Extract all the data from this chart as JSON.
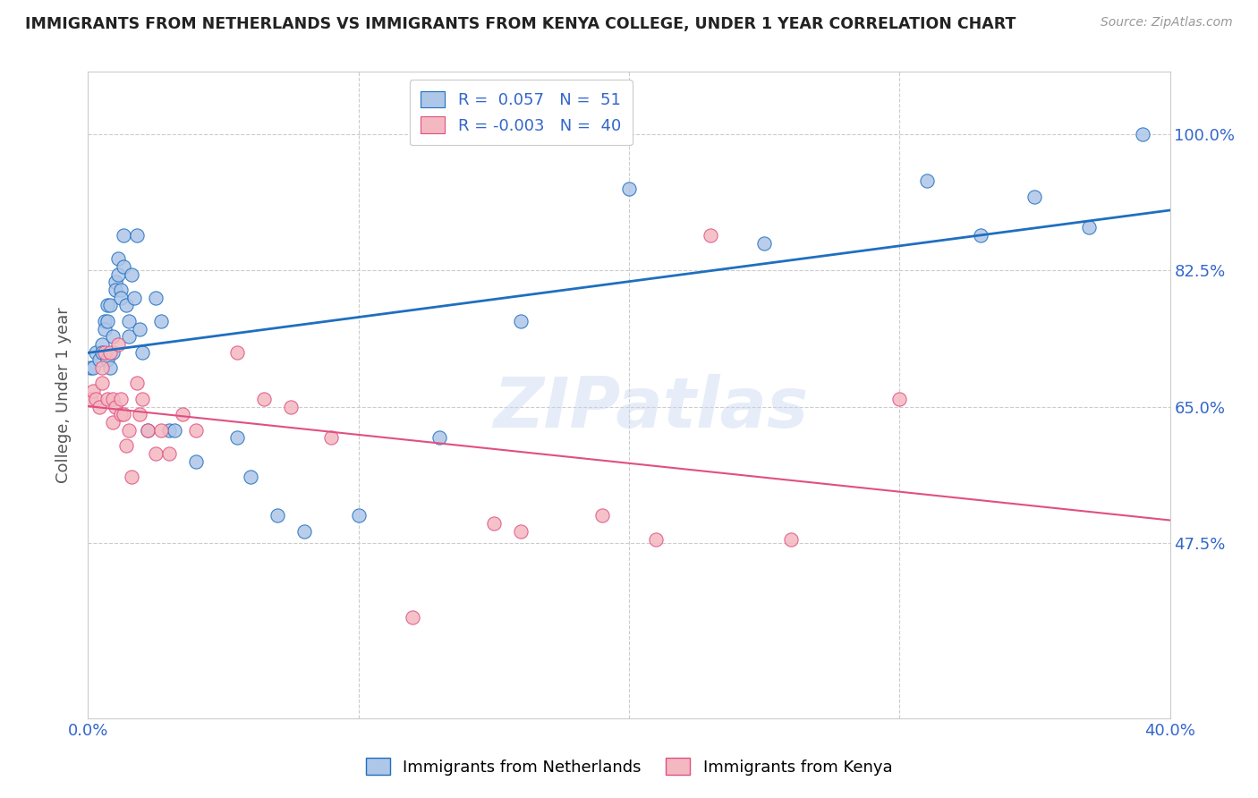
{
  "title": "IMMIGRANTS FROM NETHERLANDS VS IMMIGRANTS FROM KENYA COLLEGE, UNDER 1 YEAR CORRELATION CHART",
  "source": "Source: ZipAtlas.com",
  "ylabel": "College, Under 1 year",
  "xlim": [
    0.0,
    0.4
  ],
  "ylim": [
    0.25,
    1.08
  ],
  "x_ticks": [
    0.0,
    0.1,
    0.2,
    0.3,
    0.4
  ],
  "x_tick_labels": [
    "0.0%",
    "",
    "",
    "",
    "40.0%"
  ],
  "y_ticks": [
    0.475,
    0.65,
    0.825,
    1.0
  ],
  "y_tick_labels": [
    "47.5%",
    "65.0%",
    "82.5%",
    "100.0%"
  ],
  "r_netherlands": 0.057,
  "n_netherlands": 51,
  "r_kenya": -0.003,
  "n_kenya": 40,
  "color_netherlands": "#aec6e8",
  "color_kenya": "#f4b8c1",
  "line_color_netherlands": "#1f6fbf",
  "line_color_kenya": "#e05080",
  "watermark": "ZIPatlas",
  "netherlands_x": [
    0.001,
    0.002,
    0.003,
    0.004,
    0.005,
    0.005,
    0.006,
    0.006,
    0.007,
    0.007,
    0.007,
    0.008,
    0.008,
    0.009,
    0.009,
    0.01,
    0.01,
    0.011,
    0.011,
    0.012,
    0.012,
    0.013,
    0.013,
    0.014,
    0.015,
    0.015,
    0.016,
    0.017,
    0.018,
    0.019,
    0.02,
    0.022,
    0.025,
    0.027,
    0.03,
    0.032,
    0.04,
    0.055,
    0.06,
    0.07,
    0.08,
    0.1,
    0.13,
    0.16,
    0.2,
    0.25,
    0.31,
    0.33,
    0.35,
    0.37,
    0.39
  ],
  "netherlands_y": [
    0.7,
    0.7,
    0.72,
    0.71,
    0.73,
    0.72,
    0.76,
    0.75,
    0.78,
    0.76,
    0.71,
    0.78,
    0.7,
    0.74,
    0.72,
    0.81,
    0.8,
    0.82,
    0.84,
    0.8,
    0.79,
    0.83,
    0.87,
    0.78,
    0.76,
    0.74,
    0.82,
    0.79,
    0.87,
    0.75,
    0.72,
    0.62,
    0.79,
    0.76,
    0.62,
    0.62,
    0.58,
    0.61,
    0.56,
    0.51,
    0.49,
    0.51,
    0.61,
    0.76,
    0.93,
    0.86,
    0.94,
    0.87,
    0.92,
    0.88,
    1.0
  ],
  "kenya_x": [
    0.001,
    0.002,
    0.003,
    0.004,
    0.005,
    0.005,
    0.006,
    0.007,
    0.008,
    0.009,
    0.009,
    0.01,
    0.011,
    0.012,
    0.012,
    0.013,
    0.014,
    0.015,
    0.016,
    0.018,
    0.019,
    0.02,
    0.022,
    0.025,
    0.027,
    0.03,
    0.035,
    0.04,
    0.055,
    0.065,
    0.075,
    0.09,
    0.12,
    0.15,
    0.16,
    0.19,
    0.21,
    0.23,
    0.26,
    0.3
  ],
  "kenya_y": [
    0.66,
    0.67,
    0.66,
    0.65,
    0.68,
    0.7,
    0.72,
    0.66,
    0.72,
    0.66,
    0.63,
    0.65,
    0.73,
    0.66,
    0.64,
    0.64,
    0.6,
    0.62,
    0.56,
    0.68,
    0.64,
    0.66,
    0.62,
    0.59,
    0.62,
    0.59,
    0.64,
    0.62,
    0.72,
    0.66,
    0.65,
    0.61,
    0.38,
    0.5,
    0.49,
    0.51,
    0.48,
    0.87,
    0.48,
    0.66
  ]
}
